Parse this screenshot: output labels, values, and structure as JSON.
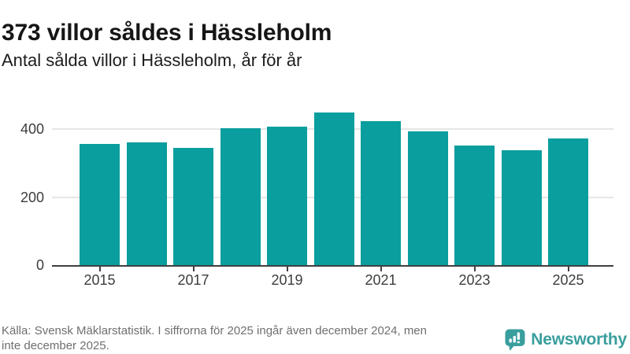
{
  "header": {
    "title": "373 villor såldes i Hässleholm",
    "subtitle": "Antal sålda villor i Hässleholm, år för år"
  },
  "chart_data": {
    "type": "bar",
    "categories": [
      "2015",
      "2016",
      "2017",
      "2018",
      "2019",
      "2020",
      "2021",
      "2022",
      "2023",
      "2024",
      "2025"
    ],
    "values": [
      357,
      360,
      346,
      402,
      407,
      449,
      424,
      393,
      351,
      338,
      373
    ],
    "title": "373 villor såldes i Hässleholm",
    "subtitle": "Antal sålda villor i Hässleholm, år för år",
    "xlabel": "",
    "ylabel": "",
    "ylim": [
      0,
      500
    ],
    "yticks": [
      0,
      200,
      400
    ],
    "xtick_labels": [
      "2015",
      "2017",
      "2019",
      "2021",
      "2023",
      "2025"
    ],
    "grid": true,
    "legend": false,
    "bar_color": "#0a9e9e",
    "gridline_color": "#e6e6e6",
    "axis_color": "#3f3f3f"
  },
  "footer": {
    "source_line1": "Källa: Svensk Mäklarstatistik. I siffrorna för 2025 ingår även december 2024, men",
    "source_line2": "inte december 2025.",
    "brand_name": "Newsworthy",
    "brand_color": "#3a9e9e"
  }
}
